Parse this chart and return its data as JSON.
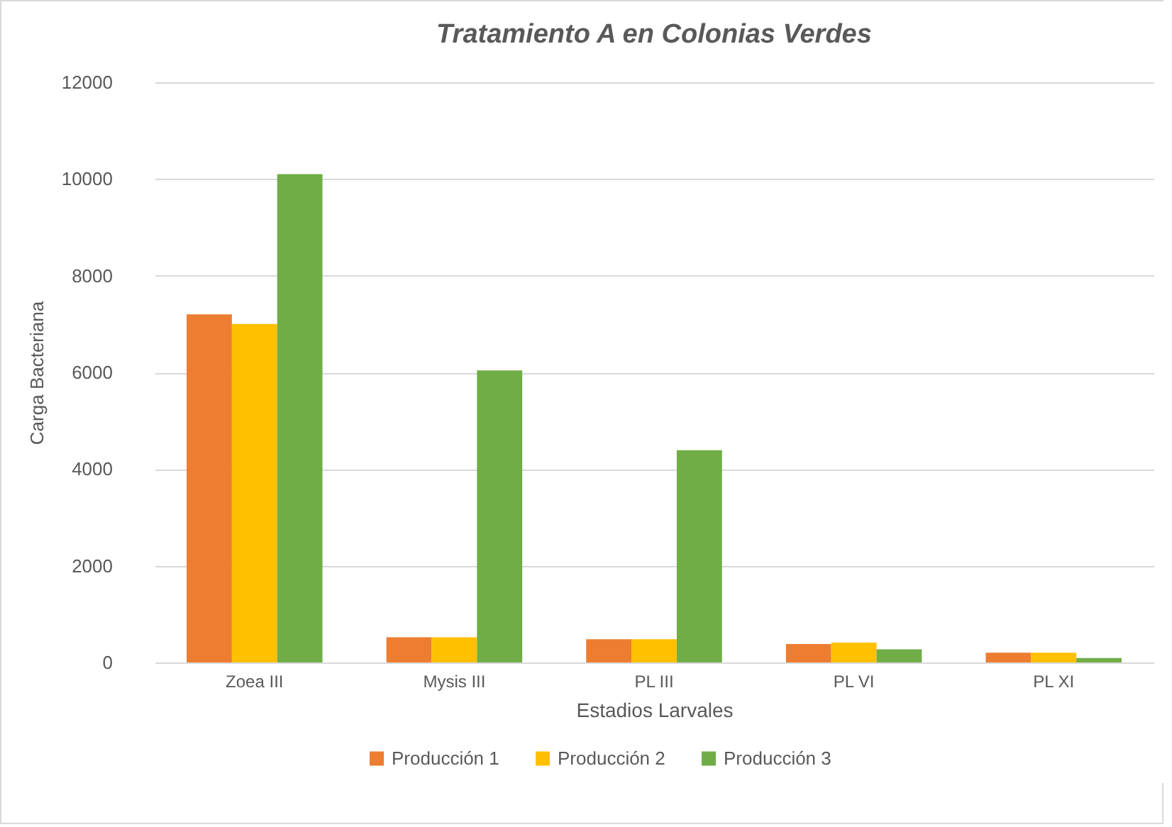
{
  "chart_data": {
    "type": "bar",
    "title": "Tratamiento A en Colonias Verdes",
    "xlabel": "Estadios Larvales",
    "ylabel": "Carga Bacteriana",
    "categories": [
      "Zoea III",
      "Mysis III",
      "PL III",
      "PL VI",
      "PL XI"
    ],
    "series": [
      {
        "name": "Producción 1",
        "color": "#ed7d31",
        "values": [
          7200,
          520,
          480,
          380,
          200
        ]
      },
      {
        "name": "Producción 2",
        "color": "#ffc000",
        "values": [
          7000,
          520,
          480,
          410,
          200
        ]
      },
      {
        "name": "Producción 3",
        "color": "#70ad47",
        "values": [
          10100,
          6040,
          4390,
          270,
          90
        ]
      }
    ],
    "ylim": [
      0,
      12000
    ],
    "yticks": [
      0,
      2000,
      4000,
      6000,
      8000,
      10000,
      12000
    ],
    "grid": "y",
    "legend": "bottom"
  }
}
